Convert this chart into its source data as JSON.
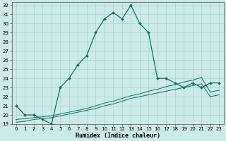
{
  "xlabel": "Humidex (Indice chaleur)",
  "background_color": "#cceae7",
  "grid_color": "#aad4d0",
  "line_color": "#1a6b60",
  "xlim": [
    -0.5,
    23.5
  ],
  "ylim": [
    19,
    32.3
  ],
  "xticks": [
    0,
    1,
    2,
    3,
    4,
    5,
    6,
    7,
    8,
    9,
    10,
    11,
    12,
    13,
    14,
    15,
    16,
    17,
    18,
    19,
    20,
    21,
    22,
    23
  ],
  "yticks": [
    19,
    20,
    21,
    22,
    23,
    24,
    25,
    26,
    27,
    28,
    29,
    30,
    31,
    32
  ],
  "main_line_x": [
    0,
    1,
    2,
    3,
    4,
    5,
    6,
    7,
    8,
    9,
    10,
    11,
    12,
    13,
    14,
    15,
    16,
    17,
    18,
    19,
    20,
    21,
    22,
    23
  ],
  "main_line_y": [
    21.0,
    20.0,
    20.0,
    19.5,
    19.0,
    23.0,
    24.0,
    25.5,
    26.5,
    29.0,
    30.5,
    31.2,
    30.5,
    32.0,
    30.0,
    29.0,
    24.0,
    24.0,
    23.5,
    23.0,
    23.5,
    23.0,
    23.5,
    23.5
  ],
  "line2_x": [
    0,
    1,
    2,
    3,
    4,
    5,
    6,
    7,
    8,
    9,
    10,
    11,
    12,
    13,
    14,
    15,
    16,
    17,
    18,
    19,
    20,
    21,
    22,
    23
  ],
  "line2_y": [
    19.2,
    19.3,
    19.5,
    19.6,
    19.7,
    19.9,
    20.1,
    20.3,
    20.5,
    20.7,
    21.0,
    21.2,
    21.5,
    21.8,
    22.0,
    22.2,
    22.4,
    22.6,
    22.8,
    23.0,
    23.2,
    23.4,
    22.0,
    22.2
  ],
  "line3_x": [
    0,
    1,
    2,
    3,
    4,
    5,
    6,
    7,
    8,
    9,
    10,
    11,
    12,
    13,
    14,
    15,
    16,
    17,
    18,
    19,
    20,
    21,
    22,
    23
  ],
  "line3_y": [
    19.5,
    19.6,
    19.7,
    19.8,
    19.9,
    20.1,
    20.3,
    20.5,
    20.7,
    21.0,
    21.3,
    21.5,
    21.8,
    22.1,
    22.3,
    22.6,
    22.8,
    23.1,
    23.3,
    23.6,
    23.8,
    24.1,
    22.5,
    22.7
  ],
  "xlabel_fontsize": 6,
  "tick_fontsize": 5
}
